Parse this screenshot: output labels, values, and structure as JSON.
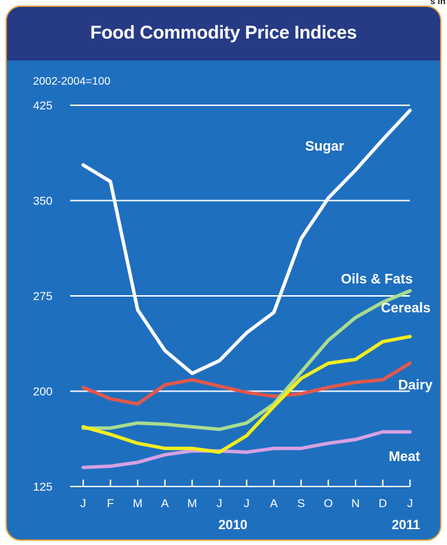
{
  "corner_text": "s in",
  "chart_data": {
    "type": "line",
    "title": "Food Commodity Price Indices",
    "unit_label": "2002-2004=100",
    "ylim": [
      125,
      425
    ],
    "yticks": [
      125,
      200,
      275,
      350,
      425
    ],
    "grid": true,
    "x": [
      "J",
      "F",
      "M",
      "A",
      "M",
      "J",
      "J",
      "A",
      "S",
      "O",
      "N",
      "D",
      "J"
    ],
    "year_labels": [
      {
        "label": "2010",
        "index": 6
      },
      {
        "label": "2011",
        "index": 12
      }
    ],
    "series": [
      {
        "name": "Sugar",
        "color": "#ffffff",
        "values": [
          378,
          365,
          264,
          232,
          214,
          224,
          246,
          262,
          320,
          352,
          374,
          398,
          421
        ]
      },
      {
        "name": "Oils & Fats",
        "color": "#a9dc8e",
        "values": [
          171,
          171,
          175,
          174,
          172,
          170,
          175,
          190,
          215,
          240,
          258,
          270,
          279
        ]
      },
      {
        "name": "Cereals",
        "color": "#f2ee1e",
        "values": [
          172,
          166,
          159,
          155,
          155,
          152,
          165,
          188,
          210,
          222,
          225,
          239,
          243
        ]
      },
      {
        "name": "Dairy",
        "color": "#e2584b",
        "values": [
          203,
          194,
          190,
          205,
          209,
          204,
          199,
          196,
          198,
          203,
          207,
          209,
          222
        ]
      },
      {
        "name": "Meat",
        "color": "#d7a0e3",
        "values": [
          140,
          141,
          144,
          150,
          153,
          153,
          152,
          155,
          155,
          159,
          162,
          168,
          168
        ]
      }
    ]
  }
}
